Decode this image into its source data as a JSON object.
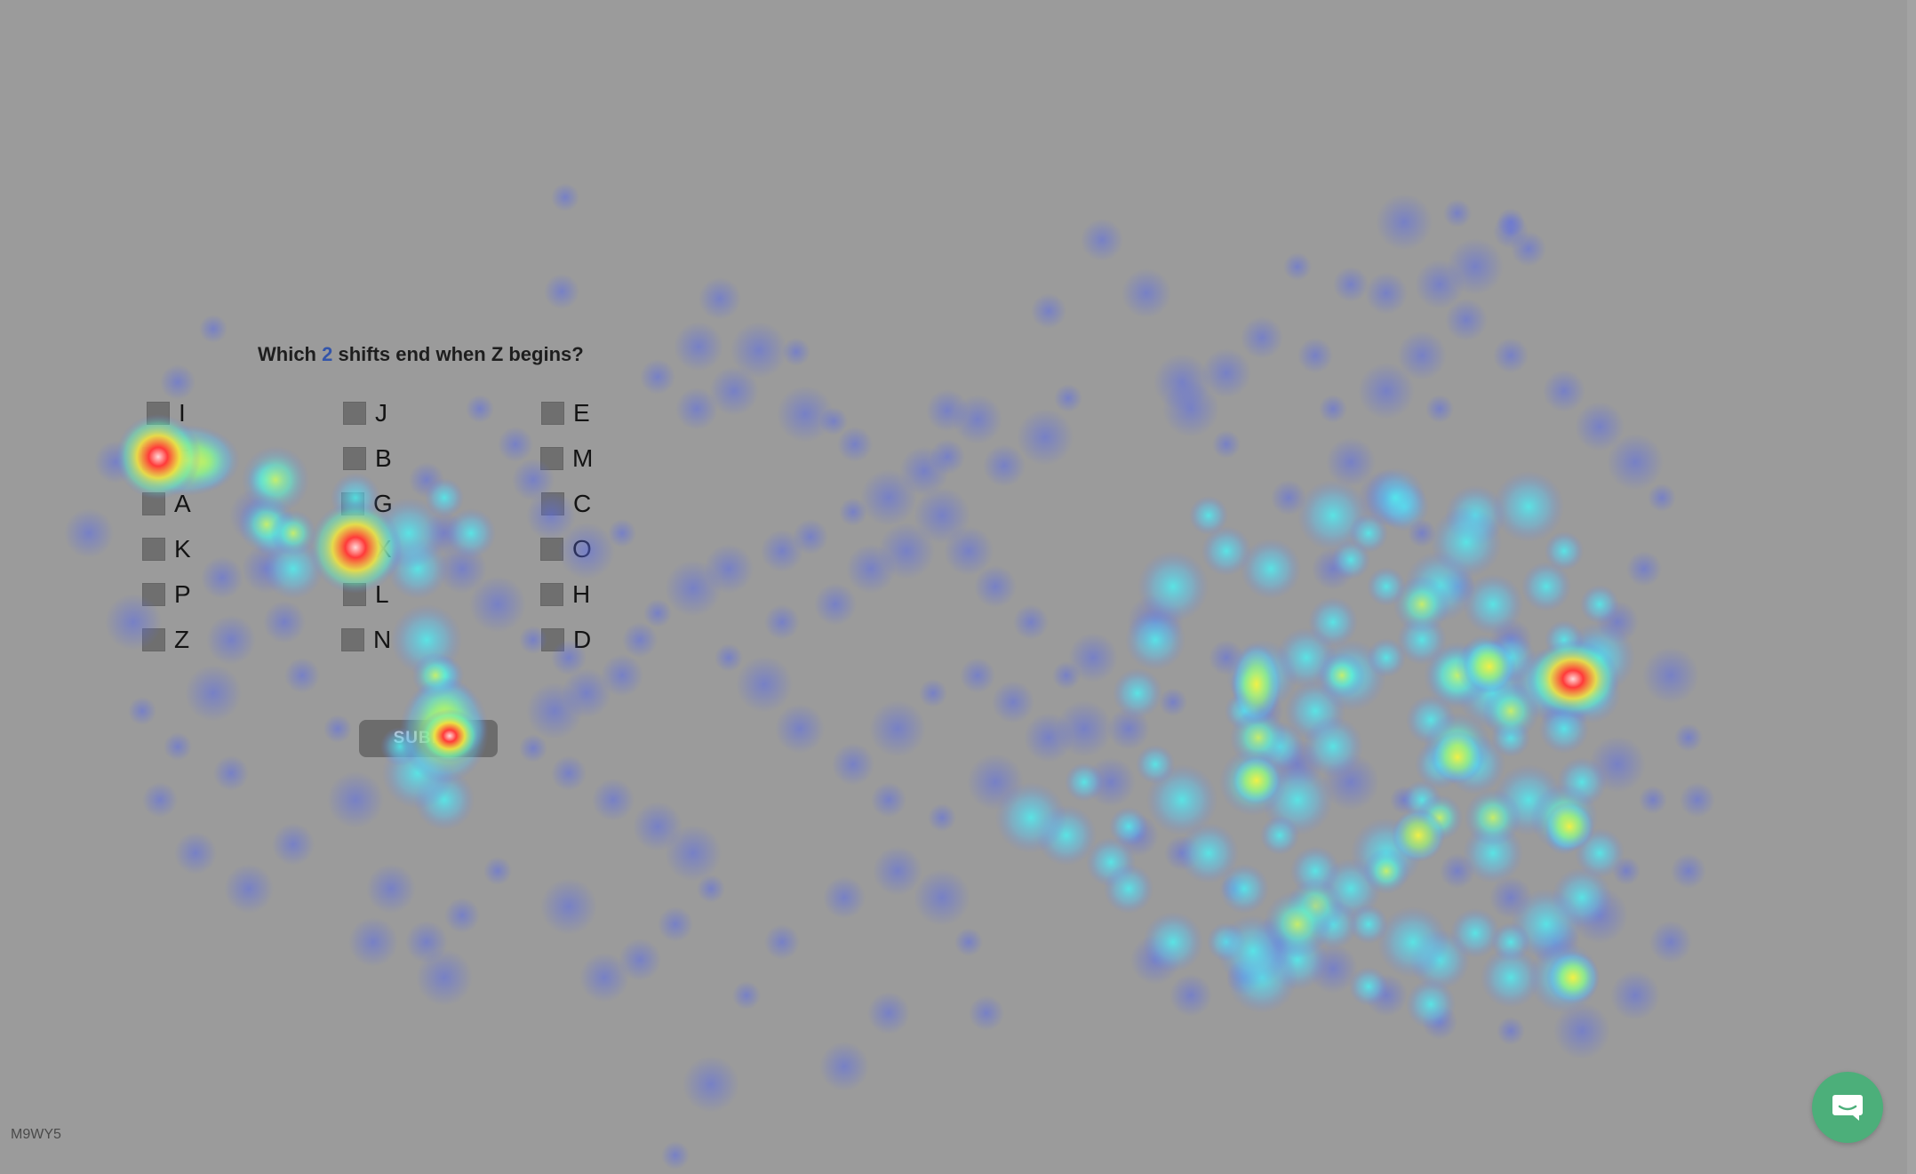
{
  "question": {
    "text_before": "Which ",
    "count": "2",
    "text_after": " shifts end when Z begins?"
  },
  "options": {
    "I": "I",
    "J": "J",
    "E": "E",
    "F": "F",
    "B": "B",
    "M": "M",
    "A": "A",
    "G": "G",
    "C": "C",
    "K": "K",
    "X": "X",
    "O": "O",
    "P": "P",
    "L": "L",
    "H": "H",
    "Z": "Z",
    "N": "N",
    "D": "D"
  },
  "submit_label": "SUBMIT",
  "code": "M9WY5",
  "icons": {
    "chat": "chat-bubble-icon"
  },
  "colors": {
    "background": "#9b9b9b",
    "chat_button": "#4caf7a"
  }
}
